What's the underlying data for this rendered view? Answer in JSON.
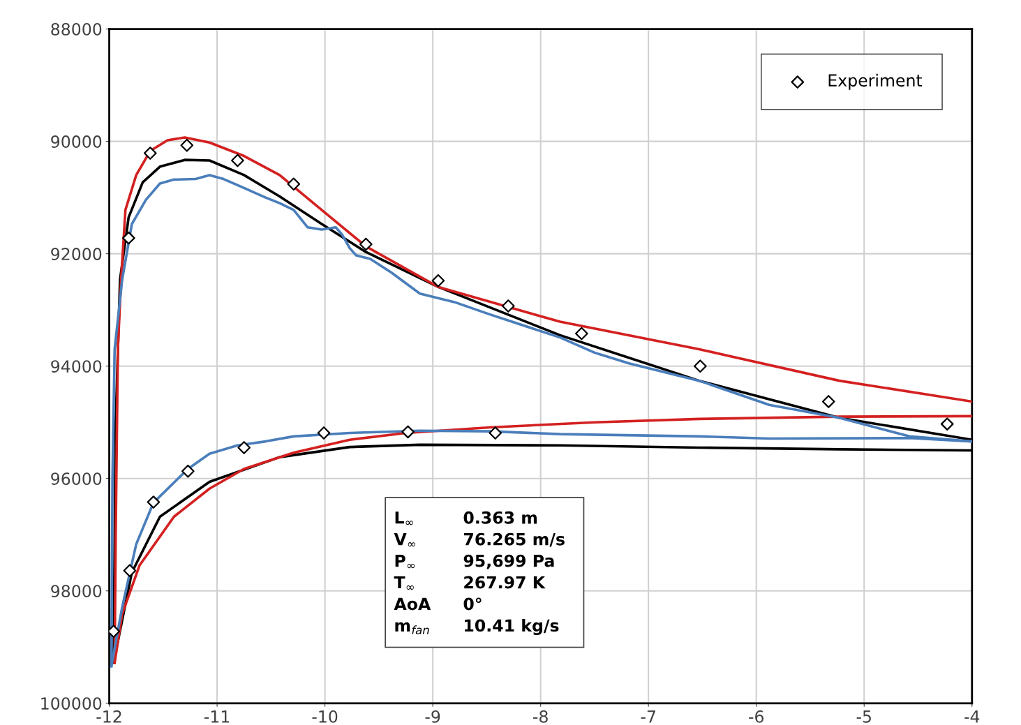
{
  "chart_data": {
    "type": "line",
    "xlim": [
      -12,
      -4
    ],
    "xticks": [
      -12,
      -11,
      -10,
      -9,
      -8,
      -7,
      -6,
      -5,
      -4
    ],
    "ylim": [
      100000,
      88000
    ],
    "yticks": [
      88000,
      90000,
      92000,
      94000,
      96000,
      98000,
      100000
    ],
    "grid": true,
    "legend": "top right",
    "annotations": [
      "L$_{∞}$",
      "0.363 m",
      "V$_{∞}$",
      "76.265 m/s",
      "P$_{∞}$",
      "95,699 Pa",
      "T$_{∞}$",
      "267.97 K",
      "AoA",
      "0°",
      "m$_{fan}$",
      "10.41 kg/s"
    ],
    "series": [
      {
        "name": "Experiment",
        "type": "scatter",
        "marker": "diamond",
        "color": "#000000",
        "x": [
          -11.96,
          -11.82,
          -11.62,
          -11.28,
          -10.81,
          -10.29,
          -9.62,
          -8.95,
          -8.3,
          -7.62,
          -6.52,
          -5.33,
          -4.23,
          -11.81,
          -11.59,
          -11.27,
          -10.75,
          -10.01,
          -9.23,
          -8.42
        ],
        "values": [
          98720,
          91720,
          90210,
          90070,
          90340,
          90760,
          91830,
          92480,
          92930,
          93420,
          94000,
          94630,
          95030,
          97640,
          96420,
          95870,
          95450,
          95190,
          95170,
          95190
        ]
      },
      {
        "color": "#000000",
        "x": [
          -11.96,
          -11.94,
          -11.9,
          -11.82,
          -11.69,
          -11.53,
          -11.3,
          -11.07,
          -10.75,
          -10.42,
          -10.03,
          -9.62,
          -8.95,
          -7.82,
          -6.53,
          -5.23,
          -4.0
        ],
        "values": [
          99280,
          95000,
          92460,
          91350,
          90730,
          90450,
          90330,
          90340,
          90600,
          90980,
          91470,
          91970,
          92590,
          93450,
          94260,
          94920,
          95310
        ]
      },
      {
        "color": "#000000",
        "x": [
          -11.96,
          -11.79,
          -11.53,
          -11.07,
          -10.42,
          -9.77,
          -9.12,
          -7.82,
          -6.53,
          -5.23,
          -4.0
        ],
        "values": [
          99280,
          97670,
          96680,
          96060,
          95620,
          95440,
          95400,
          95410,
          95450,
          95480,
          95500
        ]
      },
      {
        "color": "#d42020",
        "x": [
          -11.95,
          -11.94,
          -11.92,
          -11.89,
          -11.85,
          -11.75,
          -11.62,
          -11.46,
          -11.3,
          -11.07,
          -10.75,
          -10.42,
          -10.03,
          -9.62,
          -8.95,
          -7.82,
          -6.53,
          -5.23,
          -4.0
        ],
        "values": [
          99280,
          97000,
          93700,
          92460,
          91220,
          90600,
          90170,
          89980,
          89930,
          90020,
          90260,
          90600,
          91220,
          91870,
          92590,
          93210,
          93700,
          94260,
          94630
        ]
      },
      {
        "color": "#d42020",
        "x": [
          -11.95,
          -11.88,
          -11.72,
          -11.4,
          -11.07,
          -10.75,
          -10.29,
          -9.77,
          -9.25,
          -8.47,
          -7.5,
          -6.53,
          -5.23,
          -4.0
        ],
        "values": [
          99280,
          98410,
          97550,
          96680,
          96180,
          95830,
          95540,
          95310,
          95190,
          95090,
          95000,
          94940,
          94900,
          94890
        ]
      },
      {
        "color": "#4a7ebb",
        "x": [
          -11.98,
          -11.97,
          -11.95,
          -11.88,
          -11.79,
          -11.66,
          -11.53,
          -11.4,
          -11.2,
          -11.07,
          -10.94,
          -10.75,
          -10.55,
          -10.42,
          -10.29,
          -10.16,
          -10.03,
          -9.9,
          -9.84,
          -9.77,
          -9.71,
          -9.58,
          -9.38,
          -9.12,
          -8.8,
          -8.47,
          -7.82,
          -7.5,
          -7.18,
          -6.53,
          -5.88,
          -5.23,
          -4.58,
          -4.0
        ],
        "values": [
          99340,
          96000,
          93700,
          92460,
          91470,
          91040,
          90750,
          90680,
          90670,
          90600,
          90670,
          90830,
          91000,
          91100,
          91220,
          91530,
          91570,
          91530,
          91660,
          91900,
          92030,
          92090,
          92340,
          92710,
          92860,
          93080,
          93490,
          93760,
          93950,
          94260,
          94690,
          94920,
          95250,
          95340
        ]
      },
      {
        "color": "#4a7ebb",
        "x": [
          -11.98,
          -11.88,
          -11.75,
          -11.59,
          -11.27,
          -11.07,
          -10.81,
          -10.55,
          -10.29,
          -9.77,
          -9.12,
          -8.47,
          -7.82,
          -6.53,
          -5.88,
          -4.58,
          -4.0
        ],
        "values": [
          99340,
          98290,
          97170,
          96430,
          95830,
          95560,
          95410,
          95340,
          95250,
          95190,
          95150,
          95160,
          95210,
          95250,
          95290,
          95280,
          95340
        ]
      }
    ]
  }
}
